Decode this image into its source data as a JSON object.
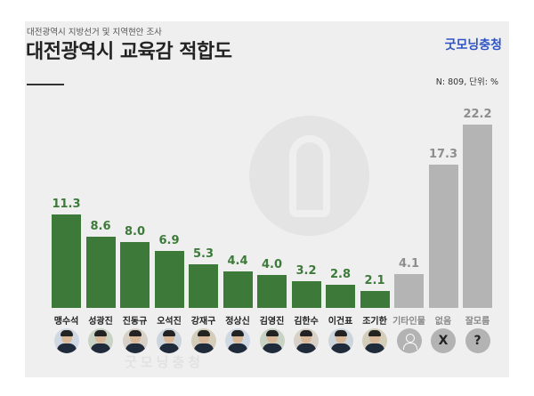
{
  "header": {
    "subtitle": "대전광역시 지방선거 및 지역현안 조사",
    "title": "대전광역시 교육감 적합도",
    "brand": "굿모닝충청",
    "note": "N: 809, 단위: %",
    "footer_watermark": "굿모닝충청"
  },
  "colors": {
    "green": "#3d7a3a",
    "gray": "#b4b4b4"
  },
  "chart_data": {
    "type": "bar",
    "title": "대전광역시 교육감 적합도",
    "xlabel": "",
    "ylabel": "단위: %",
    "ylim": [
      0,
      22.2
    ],
    "categories": [
      "맹수석",
      "성광진",
      "진동규",
      "오석진",
      "강재구",
      "정상신",
      "김영진",
      "김한수",
      "이건표",
      "조기한",
      "기타인물",
      "없음",
      "잘모름"
    ],
    "values": [
      11.3,
      8.6,
      8.0,
      6.9,
      5.3,
      4.4,
      4.0,
      3.2,
      2.8,
      2.1,
      4.1,
      17.3,
      22.2
    ],
    "value_labels": [
      "11.3",
      "8.6",
      "8.0",
      "6.9",
      "5.3",
      "4.4",
      "4.0",
      "3.2",
      "2.8",
      "2.1",
      "4.1",
      "17.3",
      "22.2"
    ],
    "bar_groups": [
      "candidate",
      "candidate",
      "candidate",
      "candidate",
      "candidate",
      "candidate",
      "candidate",
      "candidate",
      "candidate",
      "candidate",
      "other",
      "other",
      "other"
    ],
    "icon_names": [
      "candidate-photo",
      "candidate-photo",
      "candidate-photo",
      "candidate-photo",
      "candidate-photo",
      "candidate-photo",
      "candidate-photo",
      "candidate-photo",
      "candidate-photo",
      "candidate-photo",
      "person-outline-icon",
      "x-icon",
      "question-icon"
    ],
    "icon_glyphs": [
      "",
      "",
      "",
      "",
      "",
      "",
      "",
      "",
      "",
      "",
      "",
      "X",
      "?"
    ]
  }
}
